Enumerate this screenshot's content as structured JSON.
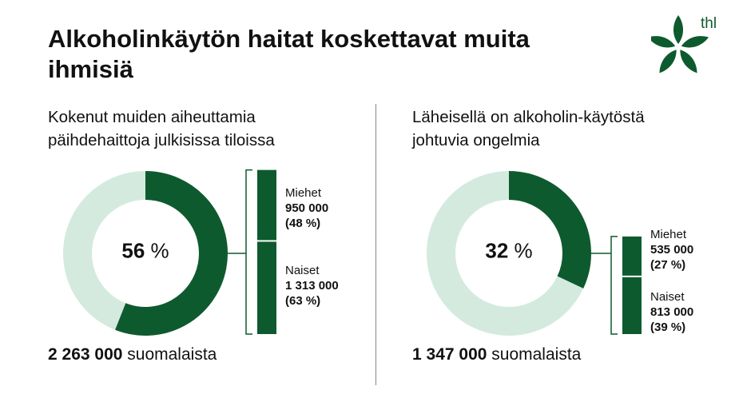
{
  "title": "Alkoholinkäytön haitat koskettavat muita ihmisiä",
  "logo_text": "thl",
  "colors": {
    "dark": "#0e5a2f",
    "light": "#d4eadf"
  },
  "chart_data": [
    {
      "type": "pie",
      "subtitle": "Kokenut muiden aiheuttamia päihdehaittoja julkisissa tiloissa",
      "value": 56,
      "value_label": "56",
      "unit": "%",
      "total_number": "2 263 000",
      "total_label": "suomalaista",
      "breakdown": [
        {
          "name": "Miehet",
          "count": "950 000",
          "percent": 48,
          "percent_label": "(48 %)"
        },
        {
          "name": "Naiset",
          "count": "1 313 000",
          "percent": 63,
          "percent_label": "(63 %)"
        }
      ]
    },
    {
      "type": "pie",
      "subtitle": "Läheisellä on alkoholin-käytöstä johtuvia ongelmia",
      "value": 32,
      "value_label": "32",
      "unit": "%",
      "total_number": "1 347 000",
      "total_label": "suomalaista",
      "breakdown": [
        {
          "name": "Miehet",
          "count": "535 000",
          "percent": 27,
          "percent_label": "(27 %)"
        },
        {
          "name": "Naiset",
          "count": "813 000",
          "percent": 39,
          "percent_label": "(39 %)"
        }
      ]
    }
  ]
}
